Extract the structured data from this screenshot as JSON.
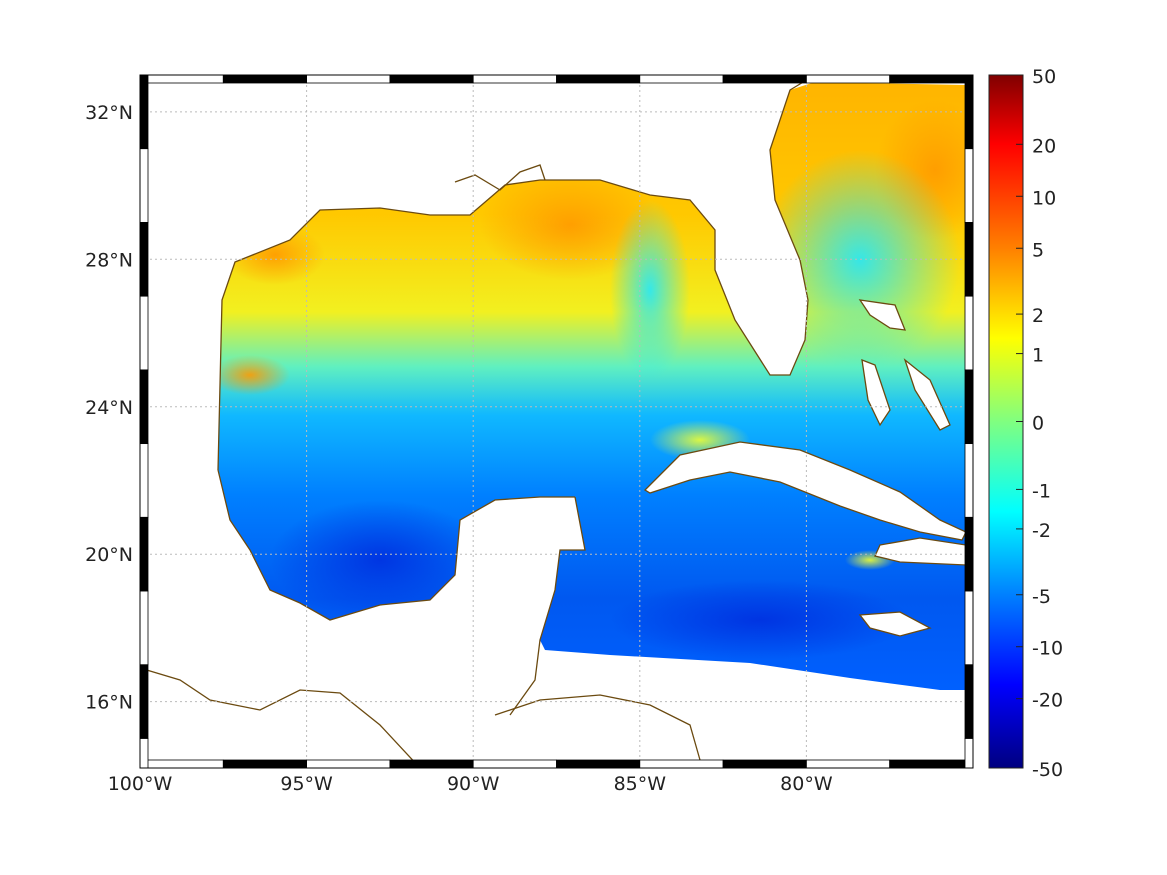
{
  "map": {
    "region": "Gulf of Mexico",
    "lon_labels": [
      "100°W",
      "95°W",
      "90°W",
      "85°W",
      "80°W"
    ],
    "lat_labels": [
      "32°N",
      "28°N",
      "24°N",
      "20°N",
      "16°N"
    ],
    "lon_values": [
      -100,
      -95,
      -90,
      -85,
      -80
    ],
    "lat_values": [
      32,
      28,
      24,
      20,
      16
    ],
    "lon_range": [
      -100,
      -75
    ],
    "lat_range": [
      14.2,
      33
    ],
    "coast_color": "#6b4a10",
    "grid": true
  },
  "colorbar": {
    "ticks": [
      "50",
      "20",
      "10",
      "5",
      "2",
      "1",
      "0",
      "-1",
      "-2",
      "-5",
      "-10",
      "-20",
      "-50"
    ],
    "colors": [
      "#800000",
      "#ff0000",
      "#ff8000",
      "#ffff00",
      "#80ff80",
      "#00ffff",
      "#0080ff",
      "#0000ff",
      "#000080"
    ]
  }
}
